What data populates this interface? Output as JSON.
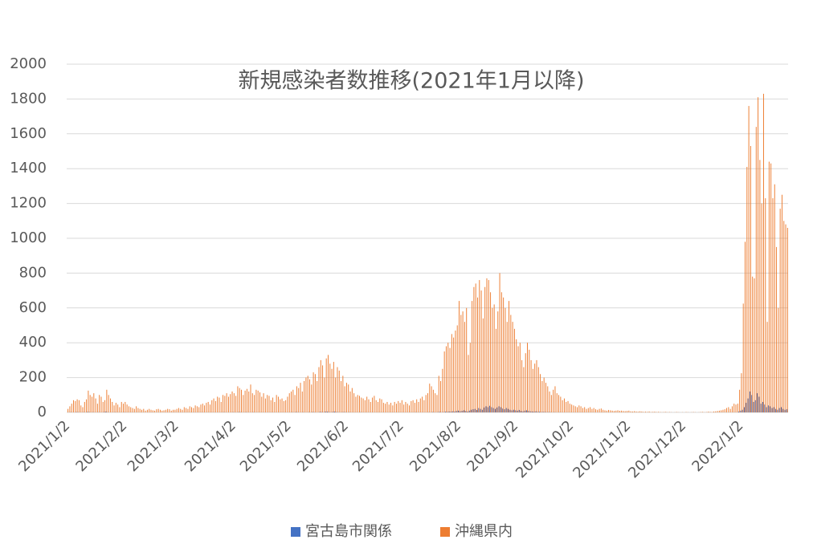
{
  "chart_data": {
    "type": "bar",
    "title": "新規感染者数推移(2021年1月以降)",
    "categories": [
      "2021/1/2",
      null,
      null,
      null,
      null,
      null,
      null,
      null,
      null,
      null,
      null,
      null,
      null,
      null,
      null,
      null,
      null,
      null,
      null,
      null,
      null,
      null,
      null,
      null,
      null,
      null,
      null,
      null,
      null,
      null,
      null,
      "2021/2/2",
      null,
      null,
      null,
      null,
      null,
      null,
      null,
      null,
      null,
      null,
      null,
      null,
      null,
      null,
      null,
      null,
      null,
      null,
      null,
      null,
      null,
      null,
      null,
      null,
      null,
      null,
      null,
      "2021/3/2",
      null,
      null,
      null,
      null,
      null,
      null,
      null,
      null,
      null,
      null,
      null,
      null,
      null,
      null,
      null,
      null,
      null,
      null,
      null,
      null,
      null,
      null,
      null,
      null,
      null,
      null,
      null,
      null,
      null,
      null,
      "2021/4/2",
      null,
      null,
      null,
      null,
      null,
      null,
      null,
      null,
      null,
      null,
      null,
      null,
      null,
      null,
      null,
      null,
      null,
      null,
      null,
      null,
      null,
      null,
      null,
      null,
      null,
      null,
      null,
      null,
      null,
      "2021/5/2",
      null,
      null,
      null,
      null,
      null,
      null,
      null,
      null,
      null,
      null,
      null,
      null,
      null,
      null,
      null,
      null,
      null,
      null,
      null,
      null,
      null,
      null,
      null,
      null,
      null,
      null,
      null,
      null,
      null,
      null,
      "2021/6/2",
      null,
      null,
      null,
      null,
      null,
      null,
      null,
      null,
      null,
      null,
      null,
      null,
      null,
      null,
      null,
      null,
      null,
      null,
      null,
      null,
      null,
      null,
      null,
      null,
      null,
      null,
      null,
      null,
      null,
      "2021/7/2",
      null,
      null,
      null,
      null,
      null,
      null,
      null,
      null,
      null,
      null,
      null,
      null,
      null,
      null,
      null,
      null,
      null,
      null,
      null,
      null,
      null,
      null,
      null,
      null,
      null,
      null,
      null,
      null,
      null,
      null,
      "2021/8/2",
      null,
      null,
      null,
      null,
      null,
      null,
      null,
      null,
      null,
      null,
      null,
      null,
      null,
      null,
      null,
      null,
      null,
      null,
      null,
      null,
      null,
      null,
      null,
      null,
      null,
      null,
      null,
      null,
      null,
      null,
      "2021/9/2",
      null,
      null,
      null,
      null,
      null,
      null,
      null,
      null,
      null,
      null,
      null,
      null,
      null,
      null,
      null,
      null,
      null,
      null,
      null,
      null,
      null,
      null,
      null,
      null,
      null,
      null,
      null,
      null,
      null,
      "2021/10/2",
      null,
      null,
      null,
      null,
      null,
      null,
      null,
      null,
      null,
      null,
      null,
      null,
      null,
      null,
      null,
      null,
      null,
      null,
      null,
      null,
      null,
      null,
      null,
      null,
      null,
      null,
      null,
      null,
      null,
      null,
      "2021/11/2",
      null,
      null,
      null,
      null,
      null,
      null,
      null,
      null,
      null,
      null,
      null,
      null,
      null,
      null,
      null,
      null,
      null,
      null,
      null,
      null,
      null,
      null,
      null,
      null,
      null,
      null,
      null,
      null,
      null,
      "2021/12/2",
      null,
      null,
      null,
      null,
      null,
      null,
      null,
      null,
      null,
      null,
      null,
      null,
      null,
      null,
      null,
      null,
      null,
      null,
      null,
      null,
      null,
      null,
      null,
      null,
      null,
      null,
      null,
      null,
      null,
      null,
      "2022/1/2",
      null,
      null,
      null,
      null,
      null,
      null,
      null,
      null,
      null,
      null,
      null,
      null,
      null,
      null,
      null,
      null,
      null,
      null,
      null,
      null,
      null,
      null,
      null,
      null,
      null
    ],
    "series": [
      {
        "name": "宮古島市関係",
        "color": "#4472c4",
        "values": [
          0,
          0,
          1,
          0,
          0,
          2,
          1,
          0,
          0,
          1,
          0,
          3,
          2,
          0,
          1,
          0,
          0,
          1,
          0,
          0,
          2,
          5,
          1,
          0,
          0,
          0,
          1,
          0,
          0,
          0,
          0,
          1,
          0,
          0,
          0,
          0,
          0,
          0,
          0,
          0,
          0,
          0,
          0,
          0,
          0,
          0,
          0,
          0,
          0,
          0,
          0,
          0,
          0,
          0,
          0,
          0,
          0,
          0,
          0,
          0,
          0,
          0,
          0,
          0,
          0,
          0,
          0,
          0,
          0,
          0,
          0,
          0,
          0,
          0,
          0,
          0,
          0,
          0,
          0,
          0,
          0,
          0,
          0,
          0,
          0,
          1,
          0,
          0,
          0,
          0,
          1,
          0,
          0,
          2,
          1,
          0,
          0,
          1,
          0,
          0,
          0,
          1,
          0,
          0,
          0,
          0,
          0,
          0,
          0,
          0,
          0,
          0,
          0,
          0,
          0,
          0,
          0,
          0,
          0,
          0,
          0,
          0,
          1,
          0,
          2,
          1,
          0,
          0,
          1,
          0,
          0,
          1,
          0,
          2,
          1,
          0,
          0,
          3,
          2,
          1,
          5,
          4,
          2,
          1,
          3,
          5,
          2,
          1,
          0,
          1,
          2,
          1,
          0,
          1,
          0,
          0,
          0,
          0,
          0,
          1,
          0,
          0,
          0,
          0,
          0,
          0,
          0,
          0,
          0,
          0,
          0,
          0,
          0,
          0,
          0,
          0,
          0,
          0,
          0,
          0,
          0,
          0,
          0,
          0,
          0,
          0,
          0,
          0,
          0,
          1,
          0,
          0,
          0,
          0,
          0,
          0,
          1,
          0,
          2,
          1,
          0,
          2,
          3,
          1,
          2,
          4,
          3,
          5,
          4,
          6,
          5,
          8,
          10,
          6,
          9,
          12,
          8,
          5,
          10,
          15,
          18,
          20,
          14,
          25,
          20,
          15,
          28,
          35,
          30,
          38,
          30,
          25,
          20,
          28,
          35,
          30,
          22,
          18,
          25,
          20,
          15,
          12,
          15,
          12,
          10,
          14,
          8,
          6,
          10,
          12,
          8,
          6,
          5,
          4,
          6,
          3,
          4,
          2,
          3,
          2,
          1,
          2,
          1,
          0,
          1,
          0,
          0,
          1,
          0,
          0,
          0,
          0,
          0,
          0,
          0,
          0,
          0,
          0,
          0,
          0,
          0,
          0,
          0,
          0,
          0,
          0,
          0,
          0,
          0,
          0,
          0,
          0,
          0,
          0,
          0,
          0,
          0,
          0,
          0,
          0,
          0,
          0,
          0,
          0,
          0,
          0,
          0,
          0,
          0,
          0,
          0,
          0,
          0,
          0,
          0,
          0,
          0,
          0,
          0,
          0,
          0,
          0,
          0,
          0,
          0,
          0,
          0,
          0,
          0,
          0,
          0,
          0,
          0,
          0,
          0,
          0,
          0,
          0,
          0,
          0,
          0,
          0,
          0,
          0,
          0,
          0,
          0,
          0,
          0,
          0,
          0,
          0,
          0,
          0,
          0,
          0,
          0,
          0,
          0,
          0,
          0,
          0,
          0,
          0,
          5,
          10,
          15,
          30,
          55,
          80,
          120,
          100,
          60,
          70,
          110,
          90,
          50,
          60,
          45,
          30,
          40,
          35,
          25,
          30,
          20,
          15,
          25,
          30,
          20,
          15,
          18
        ]
      },
      {
        "name": "沖縄県内",
        "color": "#ed7d31",
        "values": [
          20,
          35,
          50,
          70,
          65,
          75,
          70,
          40,
          30,
          60,
          75,
          125,
          100,
          90,
          110,
          80,
          50,
          100,
          90,
          60,
          70,
          130,
          100,
          80,
          60,
          40,
          55,
          45,
          30,
          60,
          50,
          60,
          45,
          35,
          30,
          25,
          20,
          35,
          25,
          20,
          15,
          20,
          10,
          15,
          20,
          15,
          12,
          10,
          18,
          20,
          15,
          10,
          12,
          15,
          20,
          18,
          10,
          15,
          15,
          20,
          25,
          20,
          15,
          30,
          25,
          20,
          35,
          30,
          25,
          40,
          35,
          30,
          45,
          50,
          40,
          55,
          60,
          45,
          70,
          80,
          65,
          90,
          85,
          60,
          100,
          95,
          110,
          90,
          105,
          120,
          110,
          95,
          150,
          140,
          130,
          100,
          125,
          135,
          120,
          160,
          110,
          100,
          130,
          125,
          115,
          90,
          110,
          80,
          100,
          95,
          70,
          85,
          60,
          100,
          90,
          75,
          80,
          65,
          70,
          90,
          110,
          120,
          130,
          100,
          150,
          140,
          170,
          120,
          180,
          200,
          210,
          190,
          160,
          230,
          220,
          180,
          260,
          300,
          270,
          200,
          310,
          330,
          280,
          250,
          290,
          200,
          260,
          240,
          180,
          210,
          150,
          170,
          160,
          120,
          140,
          110,
          90,
          100,
          95,
          85,
          80,
          70,
          90,
          75,
          60,
          85,
          95,
          70,
          60,
          80,
          75,
          55,
          50,
          60,
          45,
          55,
          40,
          60,
          50,
          65,
          55,
          70,
          45,
          60,
          50,
          40,
          65,
          70,
          55,
          75,
          60,
          80,
          90,
          70,
          100,
          110,
          165,
          150,
          130,
          110,
          100,
          210,
          180,
          250,
          350,
          380,
          400,
          370,
          450,
          430,
          470,
          500,
          640,
          560,
          580,
          520,
          600,
          330,
          400,
          640,
          720,
          740,
          660,
          760,
          700,
          540,
          720,
          770,
          760,
          690,
          600,
          620,
          480,
          580,
          800,
          690,
          660,
          600,
          520,
          640,
          560,
          520,
          480,
          420,
          380,
          400,
          300,
          260,
          340,
          400,
          360,
          300,
          250,
          280,
          300,
          260,
          220,
          180,
          200,
          170,
          150,
          120,
          100,
          130,
          150,
          110,
          100,
          90,
          70,
          80,
          60,
          65,
          50,
          45,
          40,
          35,
          30,
          40,
          35,
          25,
          30,
          20,
          25,
          30,
          20,
          25,
          18,
          15,
          20,
          22,
          15,
          12,
          10,
          14,
          12,
          10,
          8,
          10,
          12,
          9,
          10,
          8,
          7,
          8,
          10,
          6,
          5,
          7,
          5,
          4,
          6,
          5,
          3,
          4,
          3,
          5,
          2,
          3,
          4,
          2,
          3,
          2,
          1,
          2,
          3,
          1,
          2,
          1,
          0,
          1,
          2,
          1,
          0,
          1,
          0,
          2,
          1,
          0,
          1,
          2,
          1,
          0,
          1,
          2,
          3,
          1,
          2,
          4,
          3,
          2,
          5,
          6,
          8,
          10,
          12,
          15,
          18,
          25,
          30,
          20,
          35,
          50,
          45,
          50,
          130,
          225,
          625,
          980,
          1410,
          1760,
          1530,
          780,
          770,
          1640,
          1810,
          1450,
          1200,
          1830,
          1230,
          520,
          1440,
          1430,
          1230,
          1310,
          950,
          600,
          1170,
          1250,
          1100,
          1080,
          1060
        ]
      }
    ],
    "ylim": [
      0,
      2000
    ],
    "yticks": [
      0,
      200,
      400,
      600,
      800,
      1000,
      1200,
      1400,
      1600,
      1800,
      2000
    ],
    "grid": true,
    "legend": "bottom"
  }
}
